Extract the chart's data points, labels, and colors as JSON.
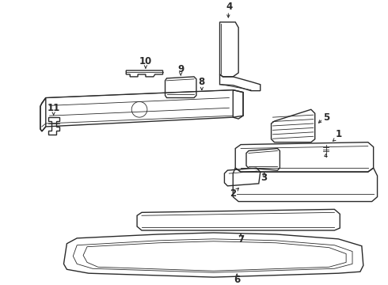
{
  "background_color": "#ffffff",
  "line_color": "#2a2a2a",
  "figsize": [
    4.9,
    3.6
  ],
  "dpi": 100,
  "lw_main": 1.0,
  "lw_thin": 0.6,
  "label_fontsize": 8.5
}
